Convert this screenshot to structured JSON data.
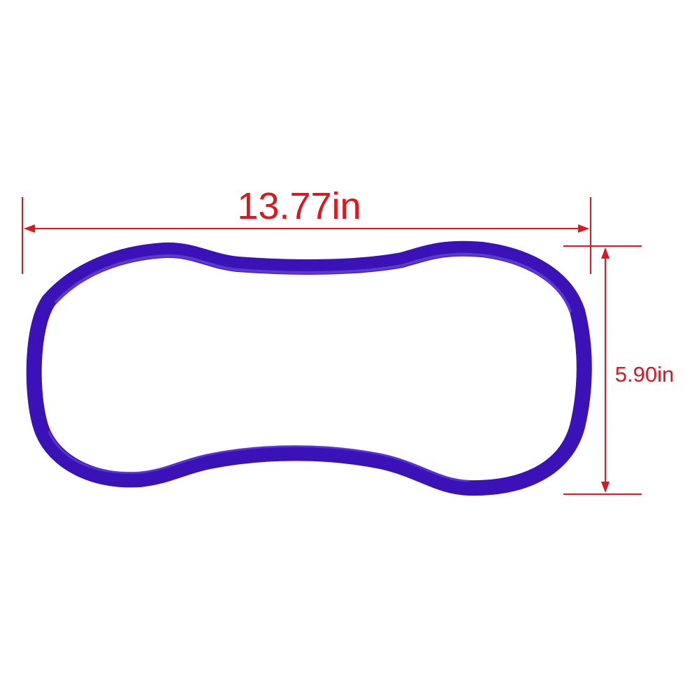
{
  "product": {
    "icon": "oval-resistance-ring",
    "ring_color": "#3b12b8",
    "ring_highlight": "#6b4ae0",
    "ring_shadow": "#24087a"
  },
  "dimensions": {
    "color": "#e2141c",
    "width_label": "13.77in",
    "height_label": "5.90in"
  }
}
